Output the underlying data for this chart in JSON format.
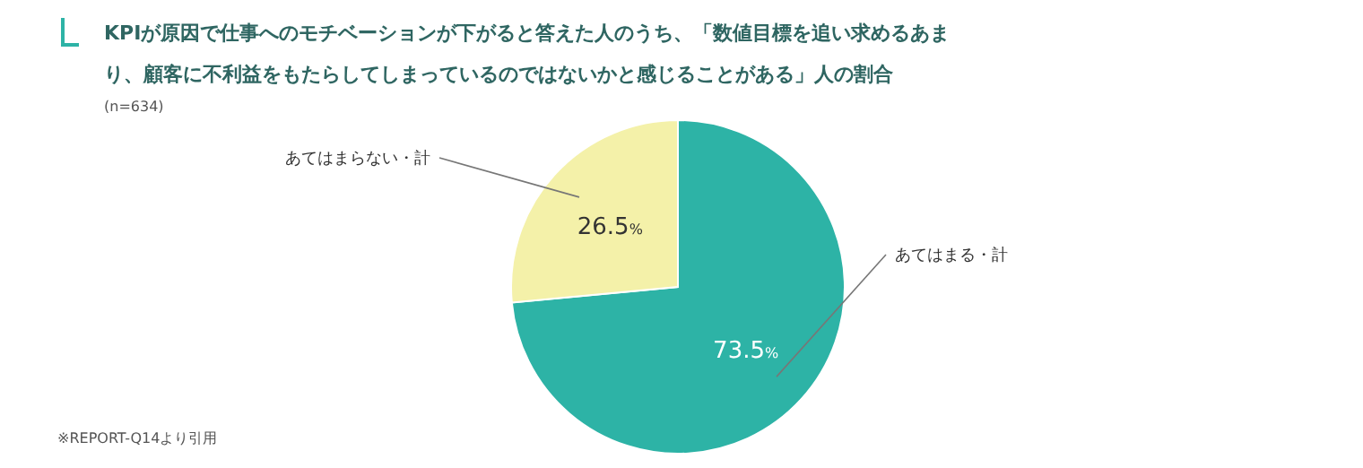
{
  "chart_data": {
    "type": "pie",
    "title": "KPIが原因で仕事へのモチベーションが下がると答えた人のうち、「数値目標を追い求めるあまり、顧客に不利益をもたらしてしまっているのではないかと感じることがある」人の割合",
    "subtitle": "(n=634)",
    "annotations": [
      "※REPORT-Q14より引用"
    ],
    "categories": [
      "あてはまる・計",
      "あてはまらない・計"
    ],
    "values": [
      73.5,
      26.5
    ],
    "colors": [
      "#2db3a6",
      "#f4f1a9"
    ],
    "value_labels": [
      "73.5%",
      "26.5%"
    ]
  }
}
